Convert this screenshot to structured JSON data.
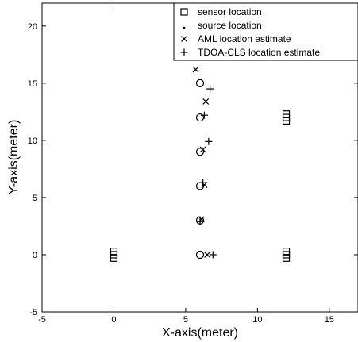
{
  "chart_data": {
    "type": "scatter",
    "xlabel": "X-axis(meter)",
    "ylabel": "Y-axis(meter)",
    "xlim": [
      -5,
      17
    ],
    "ylim": [
      -5,
      22
    ],
    "x_ticks": [
      -5,
      0,
      5,
      10,
      15
    ],
    "y_ticks": [
      -5,
      0,
      5,
      10,
      15,
      20
    ],
    "grid": false,
    "legend_position": "top-right",
    "series": [
      {
        "name": "sensor location",
        "marker": "square",
        "points": [
          [
            0,
            -0.3
          ],
          [
            0,
            0
          ],
          [
            0,
            0.3
          ],
          [
            12,
            -0.3
          ],
          [
            12,
            0
          ],
          [
            12,
            0.3
          ],
          [
            12,
            11.7
          ],
          [
            12,
            12
          ],
          [
            12,
            12.3
          ]
        ]
      },
      {
        "name": "source location",
        "marker": "dot",
        "points": [
          [
            6,
            0
          ],
          [
            6,
            3
          ],
          [
            6,
            6
          ],
          [
            6,
            9
          ],
          [
            6,
            12
          ],
          [
            6,
            15
          ]
        ]
      },
      {
        "name": "AML location estimate",
        "marker": "x",
        "points": [
          [
            6.5,
            0
          ],
          [
            6.1,
            3.1
          ],
          [
            6.3,
            6.1
          ],
          [
            6.2,
            9.2
          ],
          [
            6.4,
            13.4
          ],
          [
            5.7,
            16.2
          ]
        ]
      },
      {
        "name": "TDOA-CLS  location estimate",
        "marker": "plus",
        "points": [
          [
            6.9,
            0
          ],
          [
            6.0,
            2.9
          ],
          [
            6.2,
            6.3
          ],
          [
            6.6,
            9.9
          ],
          [
            6.3,
            12.2
          ],
          [
            6.7,
            14.5
          ]
        ]
      }
    ]
  }
}
